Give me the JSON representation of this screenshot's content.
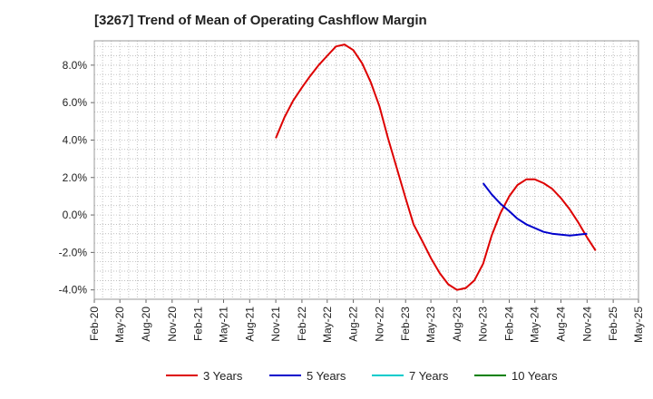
{
  "chart_data": {
    "type": "line",
    "title": "[3267]  Trend of Mean of Operating Cashflow Margin",
    "xlabel": "",
    "ylabel": "",
    "x_ticks": [
      "Feb-20",
      "May-20",
      "Aug-20",
      "Nov-20",
      "Feb-21",
      "May-21",
      "Aug-21",
      "Nov-21",
      "Feb-22",
      "May-22",
      "Aug-22",
      "Nov-22",
      "Feb-23",
      "May-23",
      "Aug-23",
      "Nov-23",
      "Feb-24",
      "May-24",
      "Aug-24",
      "Nov-24",
      "Feb-25",
      "May-25"
    ],
    "y_ticks": [
      "-4.0%",
      "-2.0%",
      "0.0%",
      "2.0%",
      "4.0%",
      "6.0%",
      "8.0%"
    ],
    "ylim": [
      -4.5,
      9.3
    ],
    "grid": true,
    "legend_position": "bottom",
    "series": [
      {
        "name": "3 Years",
        "color": "#dd0000",
        "points": [
          [
            "2021-11",
            4.1
          ],
          [
            "2021-12",
            5.2
          ],
          [
            "2022-01",
            6.1
          ],
          [
            "2022-02",
            6.8
          ],
          [
            "2022-03",
            7.4
          ],
          [
            "2022-04",
            8.0
          ],
          [
            "2022-05",
            8.5
          ],
          [
            "2022-06",
            9.0
          ],
          [
            "2022-07",
            9.1
          ],
          [
            "2022-08",
            8.8
          ],
          [
            "2022-09",
            8.1
          ],
          [
            "2022-10",
            7.1
          ],
          [
            "2022-11",
            5.8
          ],
          [
            "2022-12",
            4.1
          ],
          [
            "2023-01",
            2.5
          ],
          [
            "2023-02",
            0.9
          ],
          [
            "2023-03",
            -0.5
          ],
          [
            "2023-04",
            -1.4
          ],
          [
            "2023-05",
            -2.3
          ],
          [
            "2023-06",
            -3.1
          ],
          [
            "2023-07",
            -3.7
          ],
          [
            "2023-08",
            -4.0
          ],
          [
            "2023-09",
            -3.9
          ],
          [
            "2023-10",
            -3.5
          ],
          [
            "2023-11",
            -2.6
          ],
          [
            "2023-12",
            -1.1
          ],
          [
            "2024-01",
            0.1
          ],
          [
            "2024-02",
            1.0
          ],
          [
            "2024-03",
            1.6
          ],
          [
            "2024-04",
            1.9
          ],
          [
            "2024-05",
            1.9
          ],
          [
            "2024-06",
            1.7
          ],
          [
            "2024-07",
            1.4
          ],
          [
            "2024-08",
            0.9
          ],
          [
            "2024-09",
            0.3
          ],
          [
            "2024-10",
            -0.4
          ],
          [
            "2024-11",
            -1.2
          ],
          [
            "2024-12",
            -1.9
          ]
        ]
      },
      {
        "name": "5 Years",
        "color": "#0000cc",
        "points": [
          [
            "2023-11",
            1.7
          ],
          [
            "2023-12",
            1.1
          ],
          [
            "2024-01",
            0.6
          ],
          [
            "2024-02",
            0.2
          ],
          [
            "2024-03",
            -0.2
          ],
          [
            "2024-04",
            -0.5
          ],
          [
            "2024-05",
            -0.7
          ],
          [
            "2024-06",
            -0.9
          ],
          [
            "2024-07",
            -1.0
          ],
          [
            "2024-08",
            -1.05
          ],
          [
            "2024-09",
            -1.1
          ],
          [
            "2024-10",
            -1.05
          ],
          [
            "2024-11",
            -1.0
          ]
        ]
      },
      {
        "name": "7 Years",
        "color": "#00cccc",
        "points": []
      },
      {
        "name": "10 Years",
        "color": "#008000",
        "points": []
      }
    ]
  }
}
